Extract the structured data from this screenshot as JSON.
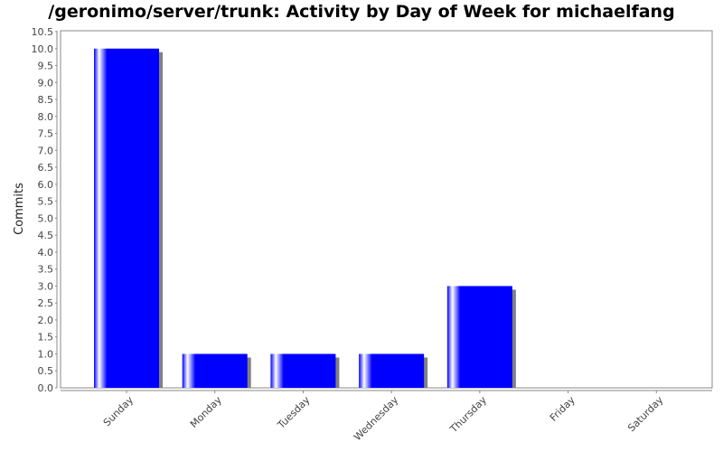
{
  "chart_data": {
    "type": "bar",
    "title": "/geronimo/server/trunk: Activity by Day of Week for michaelfang",
    "ylabel": "Commits",
    "xlabel": "",
    "categories": [
      "Sunday",
      "Monday",
      "Tuesday",
      "Wednesday",
      "Thursday",
      "Friday",
      "Saturday"
    ],
    "values": [
      10,
      1,
      1,
      1,
      3,
      0,
      0
    ],
    "ylim": [
      0,
      10.5
    ],
    "ytick_step": 0.5,
    "ytick_labels": [
      "0.0",
      "0.5",
      "1.0",
      "1.5",
      "2.0",
      "2.5",
      "3.0",
      "3.5",
      "4.0",
      "4.5",
      "5.0",
      "5.5",
      "6.0",
      "6.5",
      "7.0",
      "7.5",
      "8.0",
      "8.5",
      "9.0",
      "9.5",
      "10.0",
      "10.5"
    ],
    "grid": false,
    "bar_color": "#0000ff",
    "shadow_color": "#808080"
  }
}
